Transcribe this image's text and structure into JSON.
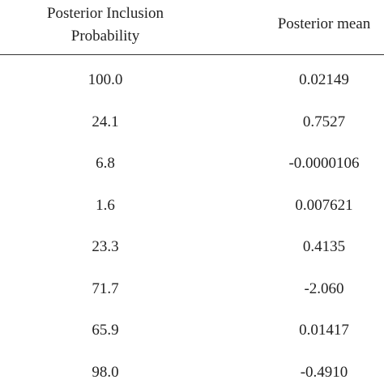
{
  "table": {
    "header": [
      "Posterior Inclusion Probability",
      "Posterior mean"
    ],
    "rows": [
      [
        "100.0",
        "0.02149"
      ],
      [
        "24.1",
        "0.7527"
      ],
      [
        "6.8",
        "-0.0000106"
      ],
      [
        "1.6",
        "0.007621"
      ],
      [
        "23.3",
        "0.4135"
      ],
      [
        "71.7",
        "-2.060"
      ],
      [
        "65.9",
        "0.01417"
      ],
      [
        "98.0",
        "-0.4910"
      ]
    ]
  }
}
